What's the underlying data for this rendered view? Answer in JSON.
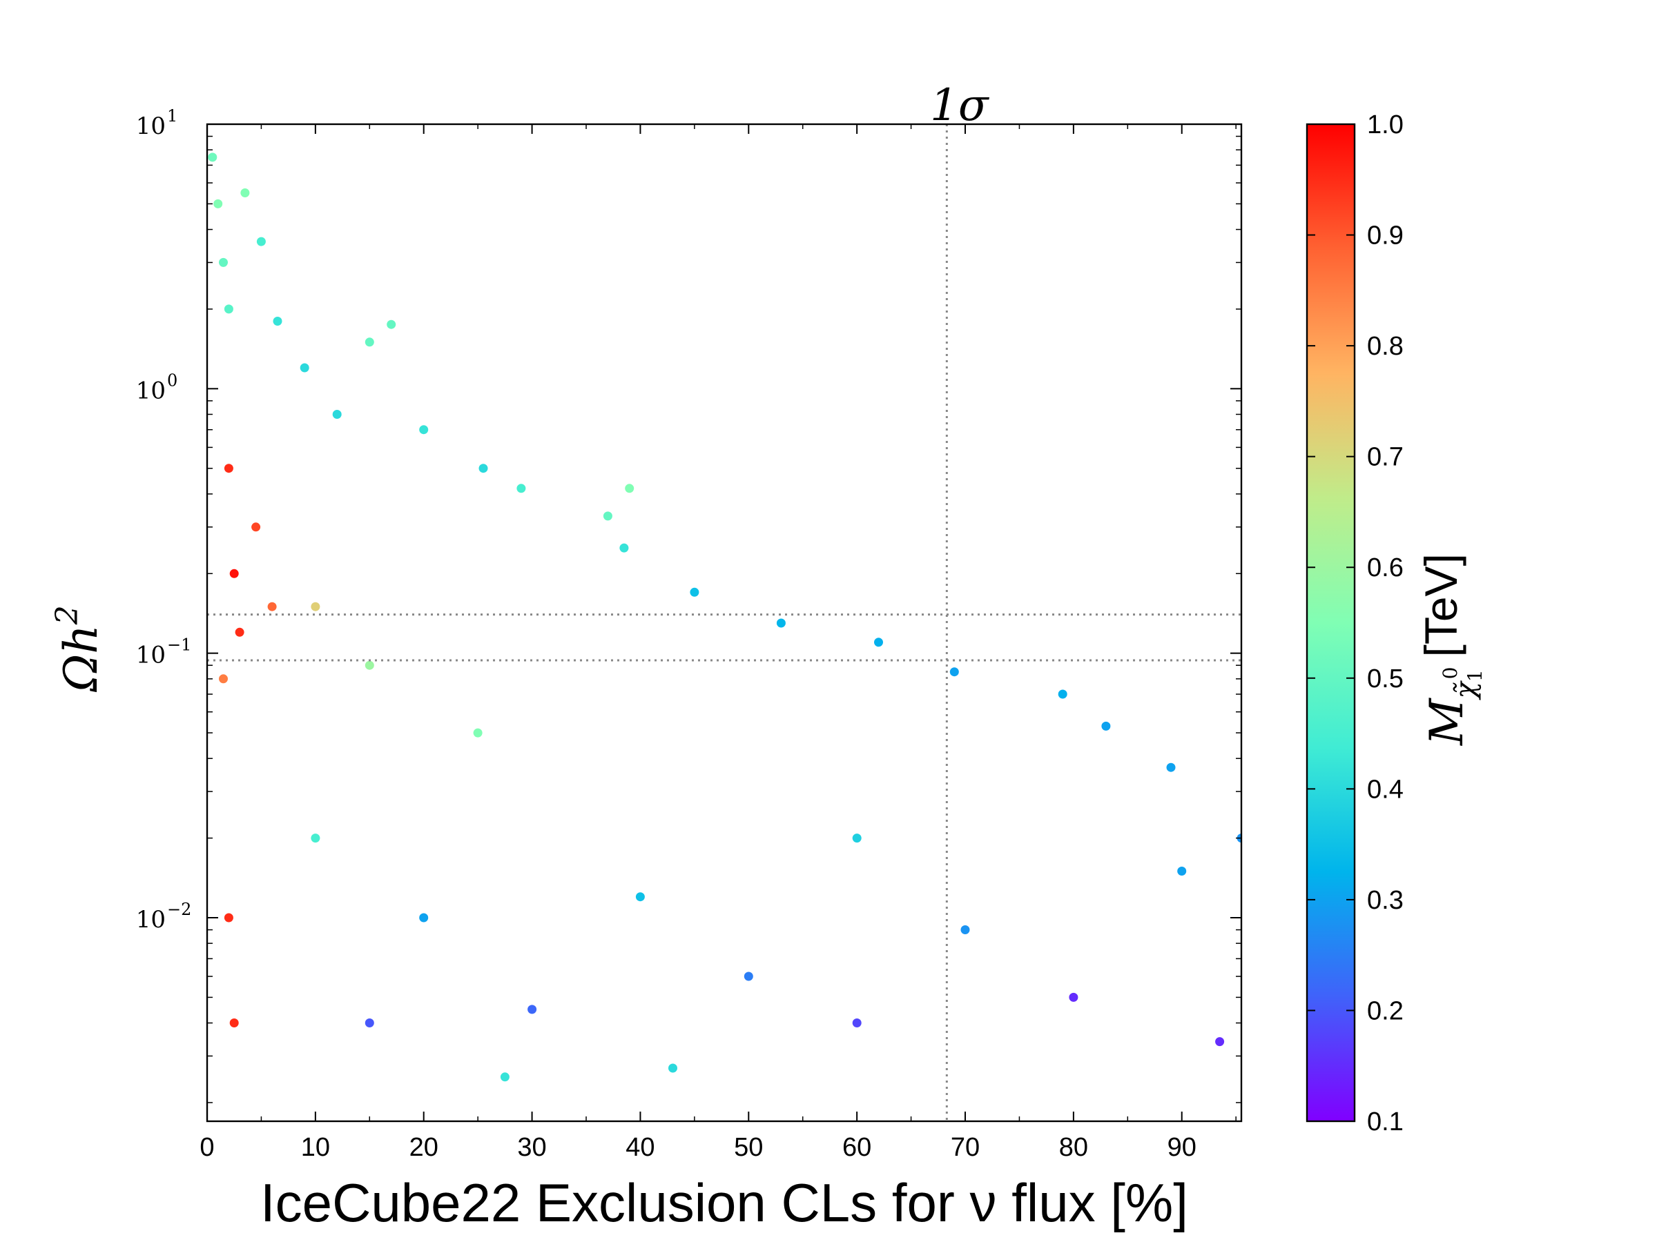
{
  "chart_data": {
    "type": "scatter",
    "xlabel": "IceCube22 Exclusion CLs for ν flux [%]",
    "ylabel": "Ωh²",
    "ylabel_math": {
      "base": "Ωh",
      "sup": "2"
    },
    "colorbar_label": "M_χ̃₁⁰ [TeV]",
    "colorbar_label_math": {
      "symbol": "M",
      "sub": "χ̃",
      "sub_sub": "1",
      "sub_sup": "0",
      "unit": "[TeV]"
    },
    "colormap": "rainbow",
    "x_scale": "linear",
    "y_scale": "log",
    "xlim": [
      0,
      95.5
    ],
    "ylim": [
      0.0017,
      10
    ],
    "clim": [
      0.1,
      1.0
    ],
    "x_ticks": [
      0,
      10,
      20,
      30,
      40,
      50,
      60,
      70,
      80,
      90
    ],
    "x_tick_labels": [
      "0",
      "10",
      "20",
      "30",
      "40",
      "50",
      "60",
      "70",
      "80",
      "90"
    ],
    "y_ticks": [
      {
        "value": 10,
        "base": "10",
        "exp": "1"
      },
      {
        "value": 1,
        "base": "10",
        "exp": "0"
      },
      {
        "value": 0.1,
        "base": "10",
        "exp": "−1"
      },
      {
        "value": 0.01,
        "base": "10",
        "exp": "−2"
      }
    ],
    "colorbar_ticks": [
      0.1,
      0.2,
      0.3,
      0.4,
      0.5,
      0.6,
      0.7,
      0.8,
      0.9,
      1.0
    ],
    "colorbar_tick_labels": [
      "0.1",
      "0.2",
      "0.3",
      "0.4",
      "0.5",
      "0.6",
      "0.7",
      "0.8",
      "0.9",
      "1.0"
    ],
    "reference_lines": {
      "vertical": {
        "x": 68.3,
        "label": "1σ",
        "style": "dotted",
        "color": "#888888"
      },
      "horizontal": [
        {
          "y": 0.14,
          "style": "dotted",
          "color": "#888888"
        },
        {
          "y": 0.094,
          "style": "dotted",
          "color": "#888888"
        }
      ]
    },
    "series": [
      {
        "color_dimension": "M_χ̃₁⁰ [TeV]",
        "marker": "circle",
        "points": [
          [
            0.5,
            7.5,
            0.52
          ],
          [
            1.0,
            5.0,
            0.55
          ],
          [
            1.5,
            3.0,
            0.5
          ],
          [
            2.0,
            2.0,
            0.48
          ],
          [
            3.5,
            5.5,
            0.55
          ],
          [
            5.0,
            3.6,
            0.45
          ],
          [
            6.5,
            1.8,
            0.42
          ],
          [
            9.0,
            1.2,
            0.4
          ],
          [
            12.0,
            0.8,
            0.4
          ],
          [
            17.0,
            1.75,
            0.5
          ],
          [
            15.0,
            1.5,
            0.5
          ],
          [
            20.0,
            0.7,
            0.42
          ],
          [
            25.5,
            0.5,
            0.4
          ],
          [
            29.0,
            0.42,
            0.45
          ],
          [
            39.0,
            0.42,
            0.55
          ],
          [
            37.0,
            0.33,
            0.5
          ],
          [
            38.5,
            0.25,
            0.42
          ],
          [
            45.0,
            0.17,
            0.35
          ],
          [
            53.0,
            0.13,
            0.33
          ],
          [
            62.0,
            0.11,
            0.32
          ],
          [
            69.0,
            0.085,
            0.3
          ],
          [
            79.0,
            0.07,
            0.32
          ],
          [
            83.0,
            0.053,
            0.3
          ],
          [
            89.0,
            0.037,
            0.3
          ],
          [
            95.5,
            0.02,
            0.28
          ],
          [
            93.5,
            0.0034,
            0.15
          ],
          [
            27.5,
            0.0025,
            0.42
          ],
          [
            43.0,
            0.0027,
            0.4
          ],
          [
            60.0,
            0.004,
            0.18
          ],
          [
            80.0,
            0.005,
            0.15
          ],
          [
            2.0,
            0.5,
            0.95
          ],
          [
            2.5,
            0.2,
            0.98
          ],
          [
            3.0,
            0.12,
            0.95
          ],
          [
            4.5,
            0.3,
            0.92
          ],
          [
            6.0,
            0.15,
            0.88
          ],
          [
            1.5,
            0.08,
            0.85
          ],
          [
            2.0,
            0.01,
            0.95
          ],
          [
            2.5,
            0.004,
            0.95
          ],
          [
            10.0,
            0.15,
            0.72
          ],
          [
            15.0,
            0.09,
            0.6
          ],
          [
            25.0,
            0.05,
            0.55
          ],
          [
            10.0,
            0.02,
            0.45
          ],
          [
            20.0,
            0.01,
            0.3
          ],
          [
            40.0,
            0.012,
            0.35
          ],
          [
            60.0,
            0.02,
            0.38
          ],
          [
            15.0,
            0.004,
            0.2
          ],
          [
            30.0,
            0.0045,
            0.22
          ],
          [
            50.0,
            0.006,
            0.25
          ],
          [
            70.0,
            0.009,
            0.28
          ],
          [
            90.0,
            0.015,
            0.3
          ]
        ]
      }
    ]
  }
}
